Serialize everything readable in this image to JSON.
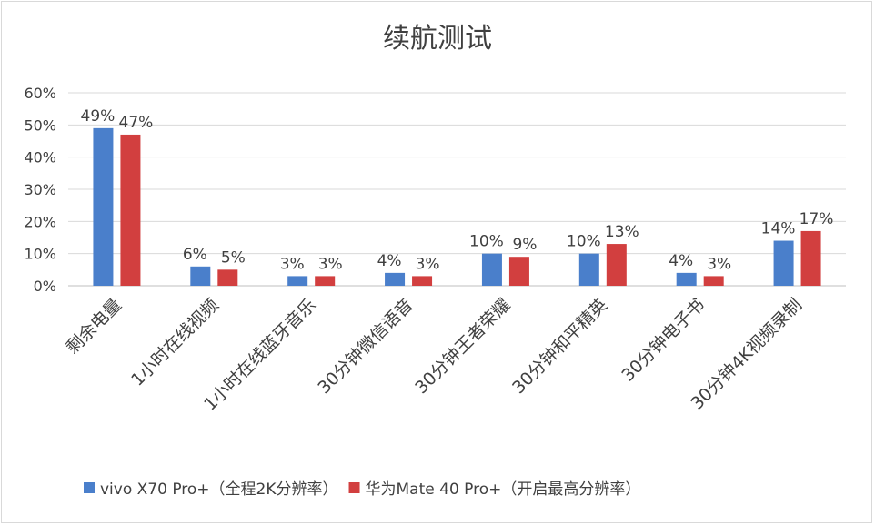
{
  "chart_data": {
    "type": "bar",
    "title": "续航测试",
    "categories": [
      "剩余电量",
      "1小时在线视频",
      "1小时在线蓝牙音乐",
      "30分钟微信语音",
      "30分钟王者荣耀",
      "30分钟和平精英",
      "30分钟电子书",
      "30分钟4K视频录制"
    ],
    "series": [
      {
        "name": "vivo X70 Pro+（全程2K分辨率）",
        "color": "#4a7fcb",
        "values": [
          49,
          6,
          3,
          4,
          10,
          10,
          4,
          14
        ]
      },
      {
        "name": "华为Mate 40 Pro+（开启最高分辨率）",
        "color": "#d23f3f",
        "values": [
          47,
          5,
          3,
          3,
          9,
          13,
          3,
          17
        ]
      }
    ],
    "value_suffix": "%",
    "ylim": [
      0,
      60
    ],
    "yticks": [
      "0%",
      "10%",
      "20%",
      "30%",
      "40%",
      "50%",
      "60%"
    ],
    "grid": true,
    "legend": "bottom"
  }
}
